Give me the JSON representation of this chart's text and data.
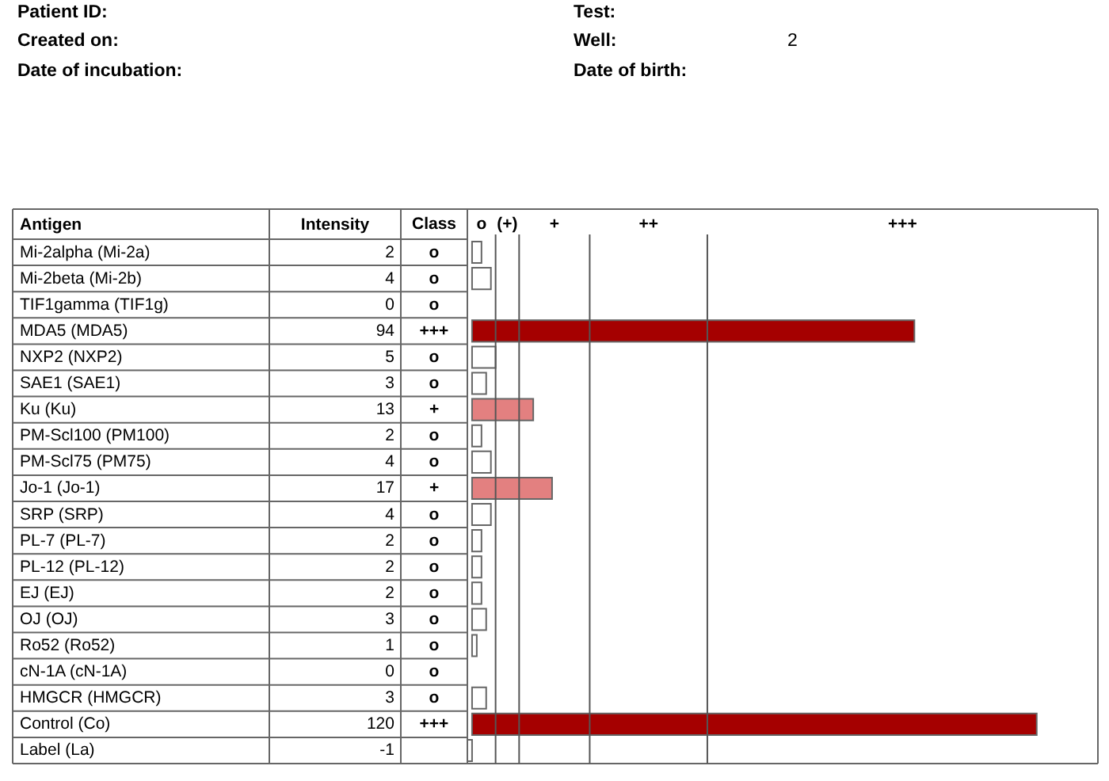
{
  "chart_data": {
    "type": "bar",
    "orientation": "horizontal",
    "xlabel": "Intensity",
    "ylabel": "Antigen",
    "categories": [
      "Mi-2alpha (Mi-2a)",
      "Mi-2beta (Mi-2b)",
      "TIF1gamma (TIF1g)",
      "MDA5 (MDA5)",
      "NXP2 (NXP2)",
      "SAE1 (SAE1)",
      "Ku (Ku)",
      "PM-Scl100 (PM100)",
      "PM-Scl75 (PM75)",
      "Jo-1 (Jo-1)",
      "SRP (SRP)",
      "PL-7 (PL-7)",
      "PL-12 (PL-12)",
      "EJ (EJ)",
      "OJ (OJ)",
      "Ro52 (Ro52)",
      "cN-1A (cN-1A)",
      "HMGCR (HMGCR)",
      "Control (Co)",
      "Label (La)"
    ],
    "values": [
      2,
      4,
      0,
      94,
      5,
      3,
      13,
      2,
      4,
      17,
      4,
      2,
      2,
      2,
      3,
      1,
      0,
      3,
      120,
      -1
    ],
    "colors": [
      "#ffffff",
      "#ffffff",
      "#ffffff",
      "#a50000",
      "#ffffff",
      "#ffffff",
      "#e38080",
      "#ffffff",
      "#ffffff",
      "#e38080",
      "#ffffff",
      "#ffffff",
      "#ffffff",
      "#ffffff",
      "#ffffff",
      "#ffffff",
      "#ffffff",
      "#ffffff",
      "#a50000",
      "#ffffff"
    ],
    "xlim": [
      -1,
      133
    ],
    "ref_lines": [
      {
        "axis": "x",
        "value": 5
      },
      {
        "axis": "x",
        "value": 10
      },
      {
        "axis": "x",
        "value": 25
      },
      {
        "axis": "x",
        "value": 50
      }
    ],
    "data_labels": true,
    "annotations": [
      "Patient ID:",
      "Created on:",
      "Date of incubation:",
      "Test:",
      "Well:",
      "2",
      "Date of birth:",
      "Class",
      "o",
      "(+)",
      "+",
      "++",
      "+++",
      "o",
      "o",
      "o",
      "+++",
      "o",
      "o",
      "+",
      "o",
      "o",
      "+",
      "o",
      "o",
      "o",
      "o",
      "o",
      "o",
      "o",
      "o",
      "+++"
    ]
  }
}
